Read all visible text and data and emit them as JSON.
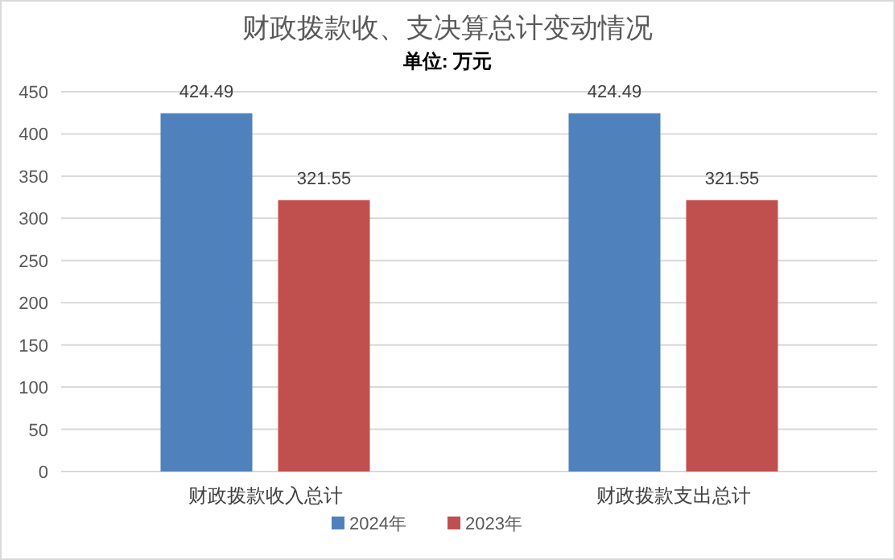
{
  "chart_data": {
    "type": "bar",
    "title": "财政拨款收、支决算总计变动情况",
    "subtitle": "单位: 万元",
    "categories": [
      "财政拨款收入总计",
      "财政拨款支出总计"
    ],
    "series": [
      {
        "name": "2024年",
        "color": "#4f81bd",
        "values": [
          424.49,
          424.49
        ]
      },
      {
        "name": "2023年",
        "color": "#c0504d",
        "values": [
          321.55,
          321.55
        ]
      }
    ],
    "ylim": [
      0,
      450
    ],
    "yticks": [
      0,
      50,
      100,
      150,
      200,
      250,
      300,
      350,
      400,
      450
    ],
    "grid": "y",
    "legend": "bottom",
    "data_labels": true
  }
}
